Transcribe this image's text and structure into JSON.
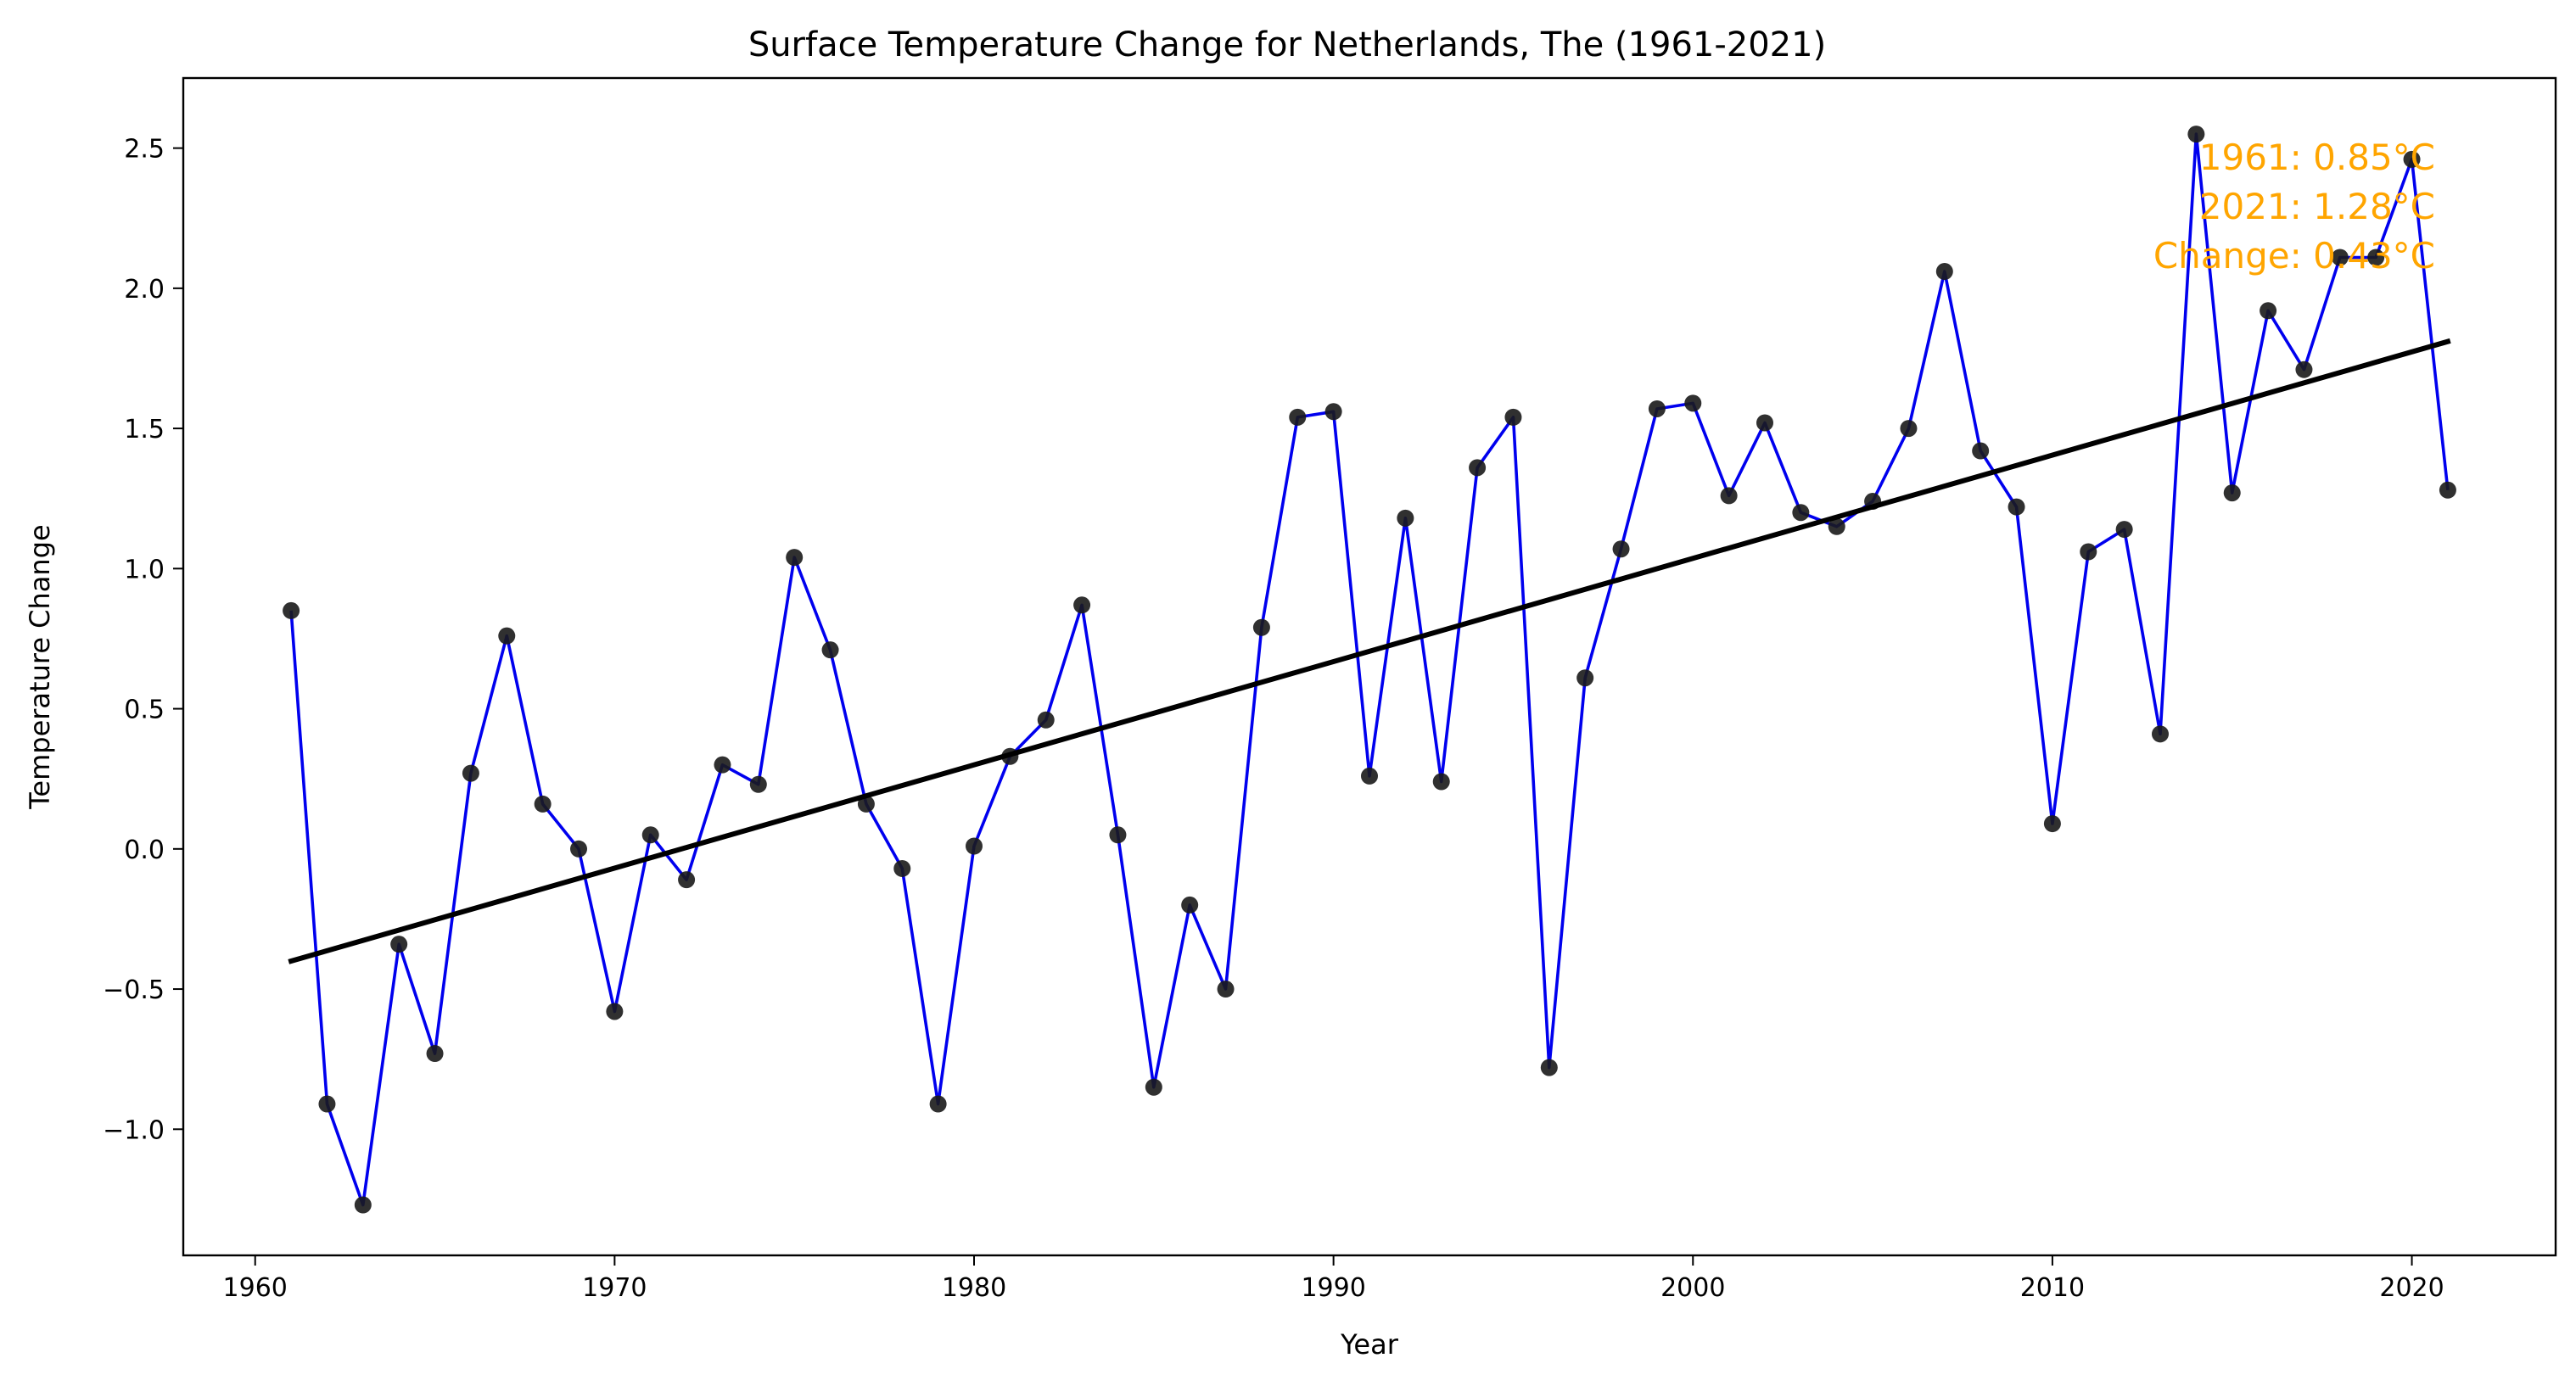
{
  "chart_data": {
    "type": "line",
    "title": "Surface Temperature Change for Netherlands, The (1961-2021)",
    "xlabel": "Year",
    "ylabel": "Temperature Change",
    "xlim": [
      1958,
      2024
    ],
    "ylim": [
      -1.45,
      2.75
    ],
    "x_ticks": [
      1960,
      1970,
      1980,
      1990,
      2000,
      2010,
      2020
    ],
    "y_ticks": [
      -1.0,
      -0.5,
      0.0,
      0.5,
      1.0,
      1.5,
      2.0,
      2.5
    ],
    "y_tick_labels": [
      "−1.0",
      "−0.5",
      "0.0",
      "0.5",
      "1.0",
      "1.5",
      "2.0",
      "2.5"
    ],
    "grid": false,
    "series": [
      {
        "line_color": "#0000EE",
        "marker_color": "#1a1a1a",
        "x": [
          1961,
          1962,
          1963,
          1964,
          1965,
          1966,
          1967,
          1968,
          1969,
          1970,
          1971,
          1972,
          1973,
          1974,
          1975,
          1976,
          1977,
          1978,
          1979,
          1980,
          1981,
          1982,
          1983,
          1984,
          1985,
          1986,
          1987,
          1988,
          1989,
          1990,
          1991,
          1992,
          1993,
          1994,
          1995,
          1996,
          1997,
          1998,
          1999,
          2000,
          2001,
          2002,
          2003,
          2004,
          2005,
          2006,
          2007,
          2008,
          2009,
          2010,
          2011,
          2012,
          2013,
          2014,
          2015,
          2016,
          2017,
          2018,
          2019,
          2020,
          2021
        ],
        "values": [
          0.85,
          -0.91,
          -1.27,
          -0.34,
          -0.73,
          0.27,
          0.76,
          0.16,
          0.0,
          -0.58,
          0.05,
          -0.11,
          0.3,
          0.23,
          1.04,
          0.71,
          0.16,
          -0.07,
          -0.91,
          0.01,
          0.33,
          0.46,
          0.87,
          0.05,
          -0.85,
          -0.2,
          -0.5,
          0.79,
          1.54,
          1.56,
          0.26,
          1.18,
          0.24,
          1.36,
          1.54,
          -0.78,
          0.61,
          1.07,
          1.57,
          1.59,
          1.26,
          1.52,
          1.2,
          1.15,
          1.24,
          1.5,
          2.06,
          1.42,
          1.22,
          0.09,
          1.06,
          1.14,
          0.41,
          2.55,
          1.27,
          1.92,
          1.71,
          2.11,
          2.11,
          2.46,
          1.28
        ]
      }
    ],
    "trend": {
      "color": "#000000",
      "x": [
        1961,
        2021
      ],
      "values": [
        -0.4,
        1.81
      ]
    },
    "annotations": [
      "1961: 0.85°C",
      "2021: 1.28°C",
      "Change: 0.43°C"
    ],
    "annotation_color": "#FFA500"
  }
}
